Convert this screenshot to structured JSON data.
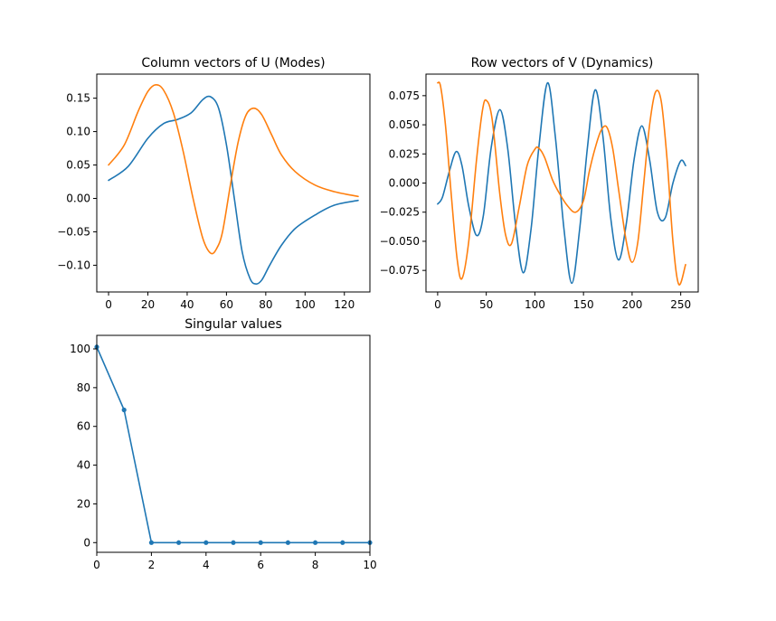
{
  "chart_data": [
    {
      "type": "line",
      "title": "Column vectors of U (Modes)",
      "xlim": [
        -6,
        133
      ],
      "ylim": [
        -0.14,
        0.186
      ],
      "xticks": [
        0,
        20,
        40,
        60,
        80,
        100,
        120
      ],
      "yticks": [
        -0.1,
        -0.05,
        0.0,
        0.05,
        0.1,
        0.15
      ],
      "yticklabels": [
        "−0.10",
        "−0.05",
        "0.00",
        "0.05",
        "0.10",
        "0.15"
      ],
      "grid": false,
      "series": [
        {
          "color": "#1f77b4",
          "x": [
            0,
            10,
            20,
            28,
            35,
            42,
            48,
            52,
            56,
            60,
            64,
            68,
            72,
            75,
            78,
            82,
            88,
            95,
            105,
            115,
            127
          ],
          "y": [
            0.027,
            0.048,
            0.09,
            0.112,
            0.118,
            0.128,
            0.148,
            0.152,
            0.135,
            0.08,
            0.0,
            -0.08,
            -0.12,
            -0.128,
            -0.122,
            -0.1,
            -0.07,
            -0.045,
            -0.025,
            -0.01,
            -0.003
          ]
        },
        {
          "color": "#ff7f0e",
          "x": [
            0,
            8,
            15,
            20,
            24,
            28,
            33,
            38,
            43,
            48,
            52,
            55,
            58,
            62,
            66,
            70,
            74,
            78,
            83,
            88,
            95,
            105,
            115,
            127
          ],
          "y": [
            0.05,
            0.08,
            0.13,
            0.16,
            0.17,
            0.162,
            0.128,
            0.07,
            0.0,
            -0.06,
            -0.082,
            -0.075,
            -0.05,
            0.02,
            0.085,
            0.125,
            0.135,
            0.125,
            0.095,
            0.065,
            0.04,
            0.02,
            0.01,
            0.003
          ]
        }
      ]
    },
    {
      "type": "line",
      "title": "Row vectors of V (Dynamics)",
      "xlim": [
        -12,
        268
      ],
      "ylim": [
        -0.0935,
        0.0935
      ],
      "xticks": [
        0,
        50,
        100,
        150,
        200,
        250
      ],
      "yticks": [
        -0.075,
        -0.05,
        -0.025,
        0.0,
        0.025,
        0.05,
        0.075
      ],
      "yticklabels": [
        "−0.075",
        "−0.050",
        "−0.025",
        "0.000",
        "0.025",
        "0.050",
        "0.075"
      ],
      "grid": false,
      "series": [
        {
          "color": "#1f77b4",
          "x": [
            0,
            5,
            12,
            19,
            25,
            32,
            40,
            47,
            55,
            64,
            72,
            80,
            88,
            96,
            104,
            113,
            121,
            130,
            138,
            146,
            154,
            162,
            170,
            178,
            186,
            194,
            202,
            210,
            218,
            226,
            234,
            242,
            250,
            255
          ],
          "y": [
            -0.018,
            -0.012,
            0.01,
            0.027,
            0.015,
            -0.02,
            -0.045,
            -0.028,
            0.03,
            0.063,
            0.03,
            -0.035,
            -0.077,
            -0.04,
            0.03,
            0.086,
            0.04,
            -0.04,
            -0.086,
            -0.04,
            0.03,
            0.08,
            0.04,
            -0.03,
            -0.066,
            -0.035,
            0.02,
            0.049,
            0.02,
            -0.025,
            -0.03,
            0.0,
            0.019,
            0.015
          ]
        },
        {
          "color": "#ff7f0e",
          "x": [
            0,
            3,
            8,
            14,
            20,
            25,
            32,
            40,
            46,
            50,
            56,
            64,
            70,
            76,
            84,
            92,
            100,
            104,
            110,
            118,
            126,
            134,
            142,
            150,
            156,
            162,
            168,
            174,
            180,
            186,
            194,
            200,
            206,
            212,
            218,
            224,
            230,
            236,
            242,
            248,
            255
          ],
          "y": [
            0.086,
            0.083,
            0.05,
            -0.01,
            -0.065,
            -0.082,
            -0.05,
            0.02,
            0.062,
            0.071,
            0.055,
            -0.01,
            -0.045,
            -0.052,
            -0.02,
            0.015,
            0.029,
            0.03,
            0.022,
            0.003,
            -0.01,
            -0.02,
            -0.025,
            -0.015,
            0.01,
            0.03,
            0.045,
            0.048,
            0.03,
            -0.005,
            -0.05,
            -0.068,
            -0.05,
            0.0,
            0.05,
            0.078,
            0.07,
            0.02,
            -0.05,
            -0.087,
            -0.07
          ]
        }
      ]
    },
    {
      "type": "line",
      "title": "Singular values",
      "xlim": [
        0,
        10
      ],
      "ylim": [
        -5,
        107
      ],
      "xticks": [
        0,
        2,
        4,
        6,
        8,
        10
      ],
      "yticks": [
        0,
        20,
        40,
        60,
        80,
        100
      ],
      "grid": false,
      "markers": true,
      "series": [
        {
          "color": "#1f77b4",
          "x": [
            0,
            1,
            2,
            3,
            4,
            5,
            6,
            7,
            8,
            9,
            10
          ],
          "y": [
            101,
            68.5,
            0,
            0,
            0,
            0,
            0,
            0,
            0,
            0,
            0
          ]
        }
      ]
    }
  ]
}
